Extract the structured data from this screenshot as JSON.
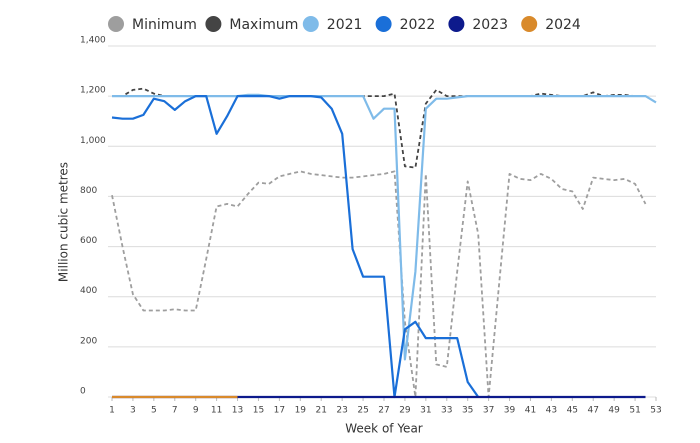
{
  "chart_data": {
    "type": "line",
    "x_label": "Week of Year",
    "y_label": "Million cubic metres",
    "x": [
      1,
      2,
      3,
      4,
      5,
      6,
      7,
      8,
      9,
      10,
      11,
      12,
      13,
      14,
      15,
      16,
      17,
      18,
      19,
      20,
      21,
      22,
      23,
      24,
      25,
      26,
      27,
      28,
      29,
      30,
      31,
      32,
      33,
      34,
      35,
      36,
      37,
      38,
      39,
      40,
      41,
      42,
      43,
      44,
      45,
      46,
      47,
      48,
      49,
      50,
      51,
      52,
      53
    ],
    "xlim": [
      1,
      53
    ],
    "xticks": [
      1,
      3,
      5,
      7,
      9,
      11,
      13,
      15,
      17,
      19,
      21,
      23,
      25,
      27,
      29,
      31,
      33,
      35,
      37,
      39,
      41,
      43,
      45,
      47,
      49,
      51,
      53
    ],
    "ylim": [
      0,
      1400
    ],
    "yticks": [
      0,
      200,
      400,
      600,
      800,
      {
        "value": 1000,
        "label": "1,000"
      },
      {
        "value": 1200,
        "label": "1,200"
      },
      {
        "value": 1400,
        "label": "1,400"
      }
    ],
    "grid": true,
    "series": [
      {
        "name": "Minimum",
        "color": "#9e9e9e",
        "style": "dashed",
        "values": [
          805,
          600,
          410,
          345,
          345,
          345,
          350,
          345,
          345,
          550,
          760,
          770,
          760,
          810,
          855,
          850,
          880,
          890,
          900,
          890,
          885,
          880,
          875,
          875,
          880,
          885,
          890,
          900,
          300,
          0,
          890,
          130,
          120,
          500,
          860,
          650,
          0,
          450,
          890,
          870,
          865,
          890,
          870,
          830,
          820,
          750,
          875,
          870,
          865,
          870,
          850,
          770,
          null
        ]
      },
      {
        "name": "Maximum",
        "color": "#444444",
        "style": "dashed",
        "values": [
          1200,
          1200,
          1225,
          1230,
          1210,
          1200,
          1200,
          1200,
          1200,
          1200,
          1200,
          1200,
          1200,
          1200,
          1200,
          1200,
          1200,
          1200,
          1200,
          1200,
          1200,
          1200,
          1200,
          1200,
          1200,
          1200,
          1200,
          1210,
          920,
          915,
          1170,
          1225,
          1200,
          1200,
          1200,
          1200,
          1200,
          1200,
          1200,
          1200,
          1200,
          1210,
          1205,
          1200,
          1200,
          1200,
          1215,
          1200,
          1205,
          1205,
          1200,
          1200,
          null
        ]
      },
      {
        "name": "2021",
        "color": "#7fbbe9",
        "style": "solid",
        "values": [
          1200,
          1200,
          1200,
          1200,
          1200,
          1200,
          1200,
          1200,
          1200,
          1200,
          1200,
          1200,
          1200,
          1205,
          1205,
          1200,
          1200,
          1200,
          1200,
          1200,
          1200,
          1200,
          1200,
          1200,
          1200,
          1110,
          1150,
          1150,
          150,
          500,
          1150,
          1190,
          1190,
          1195,
          1200,
          1200,
          1200,
          1200,
          1200,
          1200,
          1200,
          1200,
          1200,
          1200,
          1200,
          1200,
          1200,
          1200,
          1200,
          1200,
          1200,
          1200,
          1175
        ]
      },
      {
        "name": "2022",
        "color": "#1a6fd8",
        "style": "solid",
        "values": [
          1115,
          1110,
          1110,
          1125,
          1190,
          1180,
          1145,
          1180,
          1200,
          1200,
          1050,
          1120,
          1200,
          1200,
          1200,
          1200,
          1190,
          1200,
          1200,
          1200,
          1195,
          1150,
          1050,
          590,
          480,
          480,
          480,
          0,
          270,
          300,
          235,
          235,
          235,
          235,
          60,
          0,
          null,
          null,
          null,
          null,
          null,
          null,
          null,
          null,
          null,
          null,
          null,
          null,
          null,
          null,
          null,
          null,
          null
        ]
      },
      {
        "name": "2023",
        "color": "#0d1a8c",
        "style": "solid",
        "values": [
          0,
          0,
          0,
          0,
          0,
          0,
          0,
          0,
          0,
          0,
          0,
          0,
          0,
          0,
          0,
          0,
          0,
          0,
          0,
          0,
          0,
          0,
          0,
          0,
          0,
          0,
          0,
          0,
          0,
          0,
          0,
          0,
          0,
          0,
          0,
          0,
          0,
          0,
          0,
          0,
          0,
          0,
          0,
          0,
          0,
          0,
          0,
          0,
          0,
          0,
          0,
          0,
          null
        ]
      },
      {
        "name": "2024",
        "color": "#d98a2b",
        "style": "solid",
        "values": [
          0,
          0,
          0,
          0,
          0,
          0,
          0,
          0,
          0,
          0,
          0,
          0,
          0,
          null,
          null,
          null,
          null,
          null,
          null,
          null,
          null,
          null,
          null,
          null,
          null,
          null,
          null,
          null,
          null,
          null,
          null,
          null,
          null,
          null,
          null,
          null,
          null,
          null,
          null,
          null,
          null,
          null,
          null,
          null,
          null,
          null,
          null,
          null,
          null,
          null,
          null,
          null,
          null
        ]
      }
    ]
  }
}
